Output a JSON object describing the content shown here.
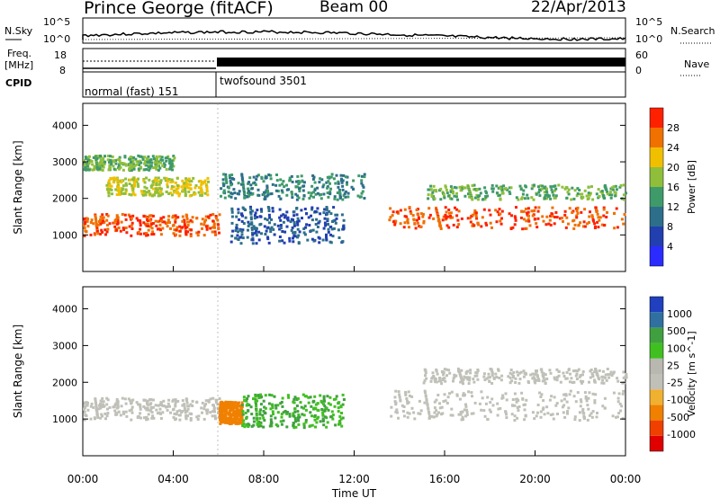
{
  "header": {
    "station": "Prince George (fitACF)",
    "beam": "Beam 00",
    "date": "22/Apr/2013"
  },
  "labels": {
    "nsky": "N.Sky",
    "freq_line1": "Freq.",
    "freq_line2": "[MHz]",
    "cpid": "CPID",
    "nsearch": "N.Search",
    "nave": "Nave",
    "exp1": "normal (fast) 151",
    "exp2": "twofsound 3501",
    "nsky_top": "10^5",
    "nsky_bot": "10^0",
    "freq_top": "18",
    "freq_bot": "8",
    "nave_top": "60",
    "nave_bot": "0",
    "nsearch_top": "10^5",
    "nsearch_bot": "10^0"
  },
  "colors": {
    "power": [
      "#2b2bff",
      "#223fb0",
      "#2d6f8a",
      "#3f9a6a",
      "#8fbf3a",
      "#f0c000",
      "#f07000",
      "#ff2000"
    ],
    "velocity_bar": [
      "#e00000",
      "#f04000",
      "#f08000",
      "#f0b030",
      "#c0c0b8",
      "#b8b8b0",
      "#40c020",
      "#40a040",
      "#3070a0",
      "#2040c0"
    ]
  },
  "chart_data": [
    {
      "type": "heatmap",
      "title": "Power",
      "xlabel": "",
      "ylabel": "Slant Range [km]",
      "ylim": [
        0,
        4600
      ],
      "y_ticks": [
        "1000",
        "2000",
        "3000",
        "4000"
      ],
      "colorbar_label": "Power [dB]",
      "colorbar_ticks": [
        "4",
        "8",
        "12",
        "16",
        "20",
        "24",
        "28"
      ],
      "bands": [
        {
          "x": [
            0,
            6
          ],
          "y": [
            1000,
            1600
          ],
          "value": 28
        },
        {
          "x": [
            1,
            5.5
          ],
          "y": [
            2100,
            2600
          ],
          "value": 20
        },
        {
          "x": [
            0,
            4
          ],
          "y": [
            2800,
            3200
          ],
          "value": 16
        },
        {
          "x": [
            6,
            12.5
          ],
          "y": [
            2000,
            2700
          ],
          "value": 12
        },
        {
          "x": [
            6.5,
            11.5
          ],
          "y": [
            800,
            1800
          ],
          "value": 8
        },
        {
          "x": [
            13.5,
            24
          ],
          "y": [
            1200,
            1800
          ],
          "value": 28
        },
        {
          "x": [
            15,
            24
          ],
          "y": [
            2000,
            2400
          ],
          "value": 16
        }
      ]
    },
    {
      "type": "heatmap",
      "title": "Velocity",
      "xlabel": "Time UT",
      "ylabel": "Slant Range [km]",
      "ylim": [
        0,
        4600
      ],
      "x_ticks": [
        "00:00",
        "04:00",
        "08:00",
        "12:00",
        "16:00",
        "20:00",
        "00:00"
      ],
      "y_ticks": [
        "1000",
        "2000",
        "3000",
        "4000"
      ],
      "colorbar_label": "Velocity [m s^-1]",
      "colorbar_ticks": [
        "1000",
        "500",
        "100",
        "25",
        "-25",
        "-100",
        "-500",
        "-1000"
      ],
      "bands": [
        {
          "x": [
            0,
            6
          ],
          "y": [
            1000,
            1600
          ],
          "value": 0
        },
        {
          "x": [
            6,
            7
          ],
          "y": [
            900,
            1500
          ],
          "value": -200
        },
        {
          "x": [
            7,
            11.5
          ],
          "y": [
            800,
            1700
          ],
          "value": 100
        },
        {
          "x": [
            13.5,
            24
          ],
          "y": [
            1000,
            1800
          ],
          "value": 0
        },
        {
          "x": [
            15,
            24
          ],
          "y": [
            2000,
            2400
          ],
          "value": 0
        }
      ]
    }
  ]
}
